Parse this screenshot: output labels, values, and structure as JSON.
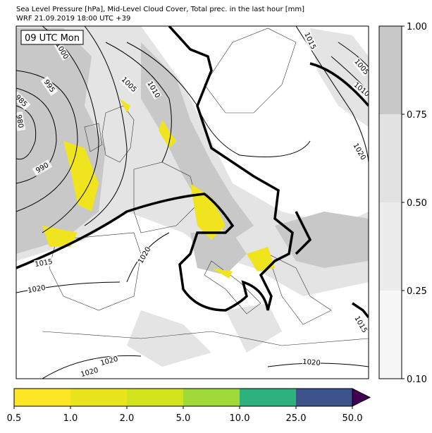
{
  "header": {
    "title": "Sea Level Pressure [hPa], Mid-Level Cloud Cover, Total prec. in the last hour [mm]",
    "subtitle": "WRF 21.09.2019 18:00 UTC +39"
  },
  "badge": "09 UTC Mon",
  "isobar_labels": [
    "1000",
    "995",
    "985",
    "980",
    "990",
    "1005",
    "1010",
    "1015",
    "1005",
    "1010",
    "1020",
    "1015",
    "1020",
    "1020",
    "1020",
    "1020",
    "1020",
    "1015"
  ],
  "cloud_colorbar": {
    "ticks": [
      "1.00",
      "0.75",
      "0.50",
      "0.25",
      "0.10"
    ]
  },
  "precip_colorbar": {
    "ticks": [
      "0.5",
      "1.0",
      "2.0",
      "5.0",
      "10.0",
      "25.0",
      "50.0"
    ]
  }
}
